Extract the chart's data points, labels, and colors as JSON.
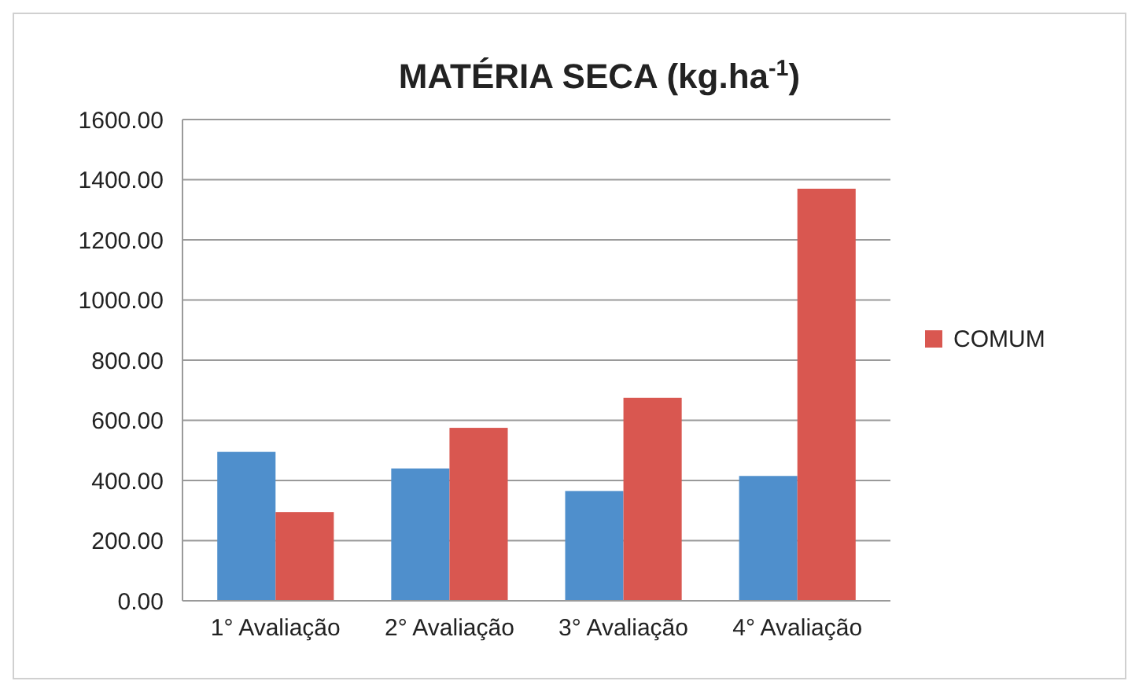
{
  "chart_data": {
    "type": "bar",
    "title": "MATÉRIA SECA (kg.ha$^{-1}$)",
    "categories": [
      "1° Avaliação",
      "2° Avaliação",
      "3° Avaliação",
      "4° Avaliação"
    ],
    "series": [
      {
        "color": "#4f8fcc",
        "values": [
          495,
          440,
          365,
          415
        ]
      },
      {
        "name": "COMUM",
        "color": "#d95750",
        "values": [
          295,
          575,
          675,
          1370
        ]
      }
    ],
    "ylim": [
      0,
      1600
    ],
    "yticks": [
      {
        "value": 0,
        "label": "0.00"
      },
      {
        "value": 200,
        "label": "200.00"
      },
      {
        "value": 400,
        "label": "400.00"
      },
      {
        "value": 600,
        "label": "600.00"
      },
      {
        "value": 800,
        "label": "800.00"
      },
      {
        "value": 1000,
        "label": "1000.00"
      },
      {
        "value": 1200,
        "label": "1200.00"
      },
      {
        "value": 1400,
        "label": "1400.00"
      },
      {
        "value": 1600,
        "label": "1600.00"
      }
    ],
    "grid": "y",
    "legend": "right"
  }
}
